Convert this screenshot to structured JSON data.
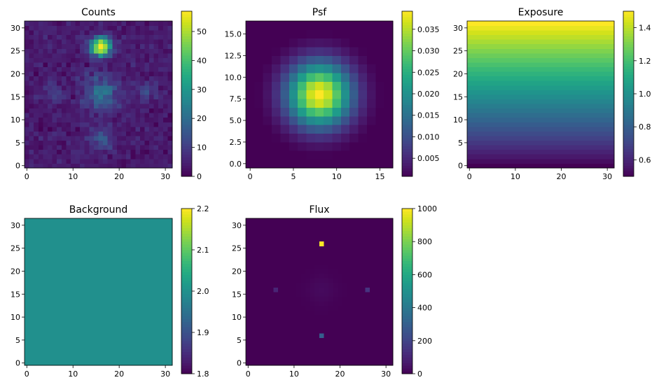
{
  "chart_data": [
    {
      "type": "heatmap",
      "title": "Counts",
      "colormap": "viridis",
      "grid_size": [
        32,
        32
      ],
      "xlim": [
        -0.5,
        31.5
      ],
      "ylim": [
        -0.5,
        31.5
      ],
      "xticks": [
        0,
        10,
        20,
        30
      ],
      "yticks": [
        0,
        5,
        10,
        15,
        20,
        25,
        30
      ],
      "colorbar": {
        "vmin": 0,
        "vmax": 57,
        "ticks": [
          0,
          10,
          20,
          30,
          40,
          50
        ],
        "tick_labels": [
          "0",
          "10",
          "20",
          "30",
          "40",
          "50"
        ]
      },
      "background_level": 4,
      "sources": [
        {
          "x": 16,
          "y": 26,
          "peak": 57,
          "sigma": 1.4
        },
        {
          "x": 16,
          "y": 16,
          "peak": 16,
          "sigma": 2.6
        },
        {
          "x": 16,
          "y": 6,
          "peak": 12,
          "sigma": 1.6
        },
        {
          "x": 6,
          "y": 16,
          "peak": 7,
          "sigma": 1.5
        },
        {
          "x": 26,
          "y": 16,
          "peak": 8,
          "sigma": 1.5
        }
      ],
      "noise": true
    },
    {
      "type": "heatmap",
      "title": "Psf",
      "colormap": "viridis",
      "grid_size": [
        17,
        17
      ],
      "xlim": [
        -0.5,
        16.5
      ],
      "ylim": [
        -0.5,
        16.5
      ],
      "xticks": [
        0,
        5,
        10,
        15
      ],
      "yticks": [
        0,
        2.5,
        5,
        7.5,
        10,
        12.5,
        15
      ],
      "ytick_labels": [
        "0.0",
        "2.5",
        "5.0",
        "7.5",
        "10.0",
        "12.5",
        "15.0"
      ],
      "colorbar": {
        "vmin": 0.0008,
        "vmax": 0.0392,
        "ticks": [
          0.005,
          0.01,
          0.015,
          0.02,
          0.025,
          0.03,
          0.035
        ],
        "tick_labels": [
          "0.005",
          "0.010",
          "0.015",
          "0.020",
          "0.025",
          "0.030",
          "0.035"
        ]
      },
      "center": [
        8,
        8
      ],
      "sigma": 2.6,
      "peak": 0.0392
    },
    {
      "type": "heatmap",
      "title": "Exposure",
      "colormap": "viridis",
      "grid_size": [
        32,
        32
      ],
      "xlim": [
        -0.5,
        31.5
      ],
      "ylim": [
        -0.5,
        31.5
      ],
      "xticks": [
        0,
        10,
        20,
        30
      ],
      "yticks": [
        0,
        5,
        10,
        15,
        20,
        25,
        30
      ],
      "colorbar": {
        "vmin": 0.5,
        "vmax": 1.5,
        "ticks": [
          0.6,
          0.8,
          1.0,
          1.2,
          1.4
        ],
        "tick_labels": [
          "0.6",
          "0.8",
          "1.0",
          "1.2",
          "1.4"
        ]
      },
      "row_gradient": [
        0.5,
        1.5
      ]
    },
    {
      "type": "heatmap",
      "title": "Background",
      "colormap": "viridis",
      "grid_size": [
        32,
        32
      ],
      "xlim": [
        -0.5,
        31.5
      ],
      "ylim": [
        -0.5,
        31.5
      ],
      "xticks": [
        0,
        10,
        20,
        30
      ],
      "yticks": [
        0,
        5,
        10,
        15,
        20,
        25,
        30
      ],
      "colorbar": {
        "vmin": 1.8,
        "vmax": 2.2,
        "ticks": [
          1.8,
          1.9,
          2.0,
          2.1,
          2.2
        ],
        "tick_labels": [
          "1.8",
          "1.9",
          "2.0",
          "2.1",
          "2.2"
        ]
      },
      "constant": 2.0
    },
    {
      "type": "heatmap",
      "title": "Flux",
      "colormap": "viridis",
      "grid_size": [
        32,
        32
      ],
      "xlim": [
        -0.5,
        31.5
      ],
      "ylim": [
        -0.5,
        31.5
      ],
      "xticks": [
        0,
        10,
        20,
        30
      ],
      "yticks": [
        0,
        5,
        10,
        15,
        20,
        25,
        30
      ],
      "colorbar": {
        "vmin": 0,
        "vmax": 1000,
        "ticks": [
          0,
          200,
          400,
          600,
          800,
          1000
        ],
        "tick_labels": [
          "0",
          "200",
          "400",
          "600",
          "800",
          "1000"
        ]
      },
      "points": [
        {
          "x": 16,
          "y": 26,
          "value": 1000
        },
        {
          "x": 16,
          "y": 6,
          "value": 300
        },
        {
          "x": 6,
          "y": 16,
          "value": 100
        },
        {
          "x": 26,
          "y": 16,
          "value": 150
        }
      ],
      "diffuse": {
        "x": 16,
        "y": 16,
        "peak": 25,
        "sigma": 2.2
      }
    }
  ]
}
